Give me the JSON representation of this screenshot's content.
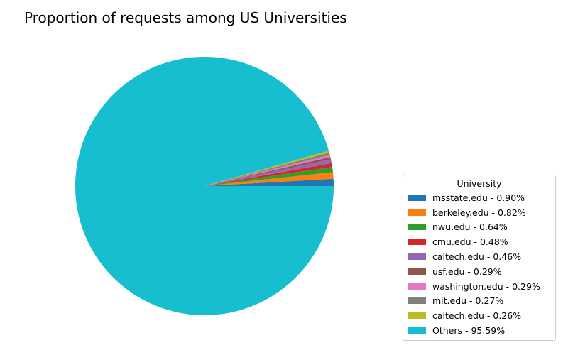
{
  "chart_data": {
    "type": "pie",
    "title": "Proportion of requests among US Universities",
    "legend_title": "University",
    "legend_position": "right",
    "start_angle_deg": 0,
    "direction": "counterclockwise",
    "slices": [
      {
        "label": "msstate.edu - 0.90%",
        "value": 0.9,
        "color": "#1f77b4"
      },
      {
        "label": "berkeley.edu - 0.82%",
        "value": 0.82,
        "color": "#ff7f0e"
      },
      {
        "label": "nwu.edu - 0.64%",
        "value": 0.64,
        "color": "#2ca02c"
      },
      {
        "label": "cmu.edu - 0.48%",
        "value": 0.48,
        "color": "#d62728"
      },
      {
        "label": "caltech.edu - 0.46%",
        "value": 0.46,
        "color": "#9467bd"
      },
      {
        "label": "usf.edu - 0.29%",
        "value": 0.29,
        "color": "#8c564b"
      },
      {
        "label": "washington.edu - 0.29%",
        "value": 0.29,
        "color": "#e377c2"
      },
      {
        "label": "mit.edu - 0.27%",
        "value": 0.27,
        "color": "#7f7f7f"
      },
      {
        "label": "caltech.edu - 0.26%",
        "value": 0.26,
        "color": "#bcbd22"
      },
      {
        "label": "Others - 95.59%",
        "value": 95.59,
        "color": "#17becf"
      }
    ]
  }
}
